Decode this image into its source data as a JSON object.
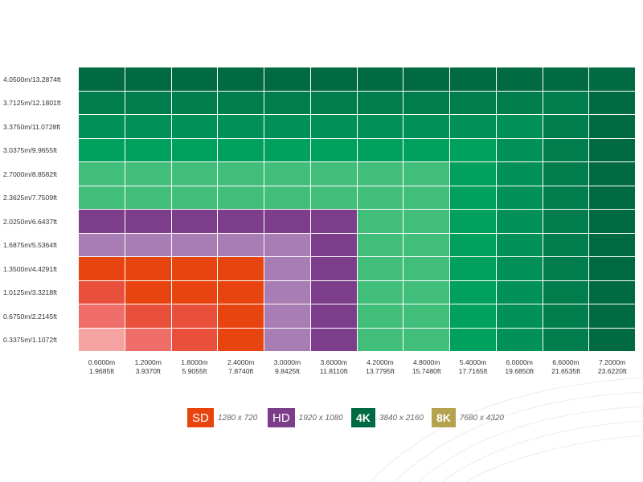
{
  "chart_data": {
    "type": "heatmap",
    "title": "",
    "xlabel": "",
    "ylabel": "",
    "x_ticks": [
      {
        "m": "0.6000m",
        "ft": "1.9685ft"
      },
      {
        "m": "1.2000m",
        "ft": "3.9370ft"
      },
      {
        "m": "1.8000m",
        "ft": "5.9055ft"
      },
      {
        "m": "2.4000m",
        "ft": "7.8740ft"
      },
      {
        "m": "3.0000m",
        "ft": "9.8425ft"
      },
      {
        "m": "3.6000m",
        "ft": "11.8110ft"
      },
      {
        "m": "4.2000m",
        "ft": "13.7795ft"
      },
      {
        "m": "4.8000m",
        "ft": "15.7480ft"
      },
      {
        "m": "5.4000m",
        "ft": "17.7165ft"
      },
      {
        "m": "6.0000m",
        "ft": "19.6850ft"
      },
      {
        "m": "6.6000m",
        "ft": "21.6535ft"
      },
      {
        "m": "7.2000m",
        "ft": "23.6220ft"
      }
    ],
    "y_ticks": [
      "4.0500m/13.2874ft",
      "3.7125m/12.1801ft",
      "3.3750m/11.0728ft",
      "3.0375m/9.9655ft",
      "2.7000m/8.8582ft",
      "2.3625m/7.7509ft",
      "2.0250m/6.6437ft",
      "1.6875m/5.5364ft",
      "1.3500m/4.4291ft",
      "1.0125m/3.3218ft",
      "0.6750m/2.2145ft",
      "0.3375m/1.1072ft"
    ],
    "categories": [
      "SD",
      "HD",
      "4K",
      "8K"
    ],
    "color_ramps": {
      "SD": [
        "#f4a3a0",
        "#ef6e6a",
        "#e8503c",
        "#e84410"
      ],
      "HD": [
        "#a87db3",
        "#7c3d8a"
      ],
      "4K": [
        "#42be7b",
        "#00b26a",
        "#00a05e",
        "#009058",
        "#007d4c",
        "#006b43"
      ]
    },
    "cell_colors": [
      [
        "#006b43",
        "#006b43",
        "#006b43",
        "#006b43",
        "#006b43",
        "#006b43",
        "#006b43",
        "#006b43",
        "#006b43",
        "#006b43",
        "#006b43",
        "#006b43"
      ],
      [
        "#007d4c",
        "#007d4c",
        "#007d4c",
        "#007d4c",
        "#007d4c",
        "#007d4c",
        "#007d4c",
        "#007d4c",
        "#007d4c",
        "#007d4c",
        "#007d4c",
        "#006b43"
      ],
      [
        "#009058",
        "#009058",
        "#009058",
        "#009058",
        "#009058",
        "#009058",
        "#009058",
        "#009058",
        "#009058",
        "#009058",
        "#007d4c",
        "#006b43"
      ],
      [
        "#00a05e",
        "#00a05e",
        "#00a05e",
        "#00a05e",
        "#00a05e",
        "#00a05e",
        "#00a05e",
        "#00a05e",
        "#00a05e",
        "#009058",
        "#007d4c",
        "#006b43"
      ],
      [
        "#42be7b",
        "#42be7b",
        "#42be7b",
        "#42be7b",
        "#42be7b",
        "#42be7b",
        "#42be7b",
        "#42be7b",
        "#00a05e",
        "#009058",
        "#007d4c",
        "#006b43"
      ],
      [
        "#42be7b",
        "#42be7b",
        "#42be7b",
        "#42be7b",
        "#42be7b",
        "#42be7b",
        "#42be7b",
        "#42be7b",
        "#00a05e",
        "#009058",
        "#007d4c",
        "#006b43"
      ],
      [
        "#7c3d8a",
        "#7c3d8a",
        "#7c3d8a",
        "#7c3d8a",
        "#7c3d8a",
        "#7c3d8a",
        "#42be7b",
        "#42be7b",
        "#00a05e",
        "#009058",
        "#007d4c",
        "#006b43"
      ],
      [
        "#a87db3",
        "#a87db3",
        "#a87db3",
        "#a87db3",
        "#a87db3",
        "#7c3d8a",
        "#42be7b",
        "#42be7b",
        "#00a05e",
        "#009058",
        "#007d4c",
        "#006b43"
      ],
      [
        "#e84410",
        "#e84410",
        "#e84410",
        "#e84410",
        "#a87db3",
        "#7c3d8a",
        "#42be7b",
        "#42be7b",
        "#00a05e",
        "#009058",
        "#007d4c",
        "#006b43"
      ],
      [
        "#e8503c",
        "#e84410",
        "#e84410",
        "#e84410",
        "#a87db3",
        "#7c3d8a",
        "#42be7b",
        "#42be7b",
        "#00a05e",
        "#009058",
        "#007d4c",
        "#006b43"
      ],
      [
        "#ef6e6a",
        "#e8503c",
        "#e8503c",
        "#e84410",
        "#a87db3",
        "#7c3d8a",
        "#42be7b",
        "#42be7b",
        "#00a05e",
        "#009058",
        "#007d4c",
        "#006b43"
      ],
      [
        "#f4a3a0",
        "#ef6e6a",
        "#e8503c",
        "#e84410",
        "#a87db3",
        "#7c3d8a",
        "#42be7b",
        "#42be7b",
        "#00a05e",
        "#009058",
        "#007d4c",
        "#006b43"
      ]
    ],
    "legend": [
      {
        "label": "SD",
        "resolution": "1280 x 720",
        "color": "#e84410"
      },
      {
        "label": "HD",
        "resolution": "1920 x 1080",
        "color": "#7c3d8a"
      },
      {
        "label": "4K",
        "resolution": "3840 x 2160",
        "color": "#006b43"
      },
      {
        "label": "8K",
        "resolution": "7680 x 4320",
        "color": "#b5a24d"
      }
    ],
    "legend_placement": "bottom",
    "grid": true,
    "grid_line_color": "#ffffff"
  }
}
